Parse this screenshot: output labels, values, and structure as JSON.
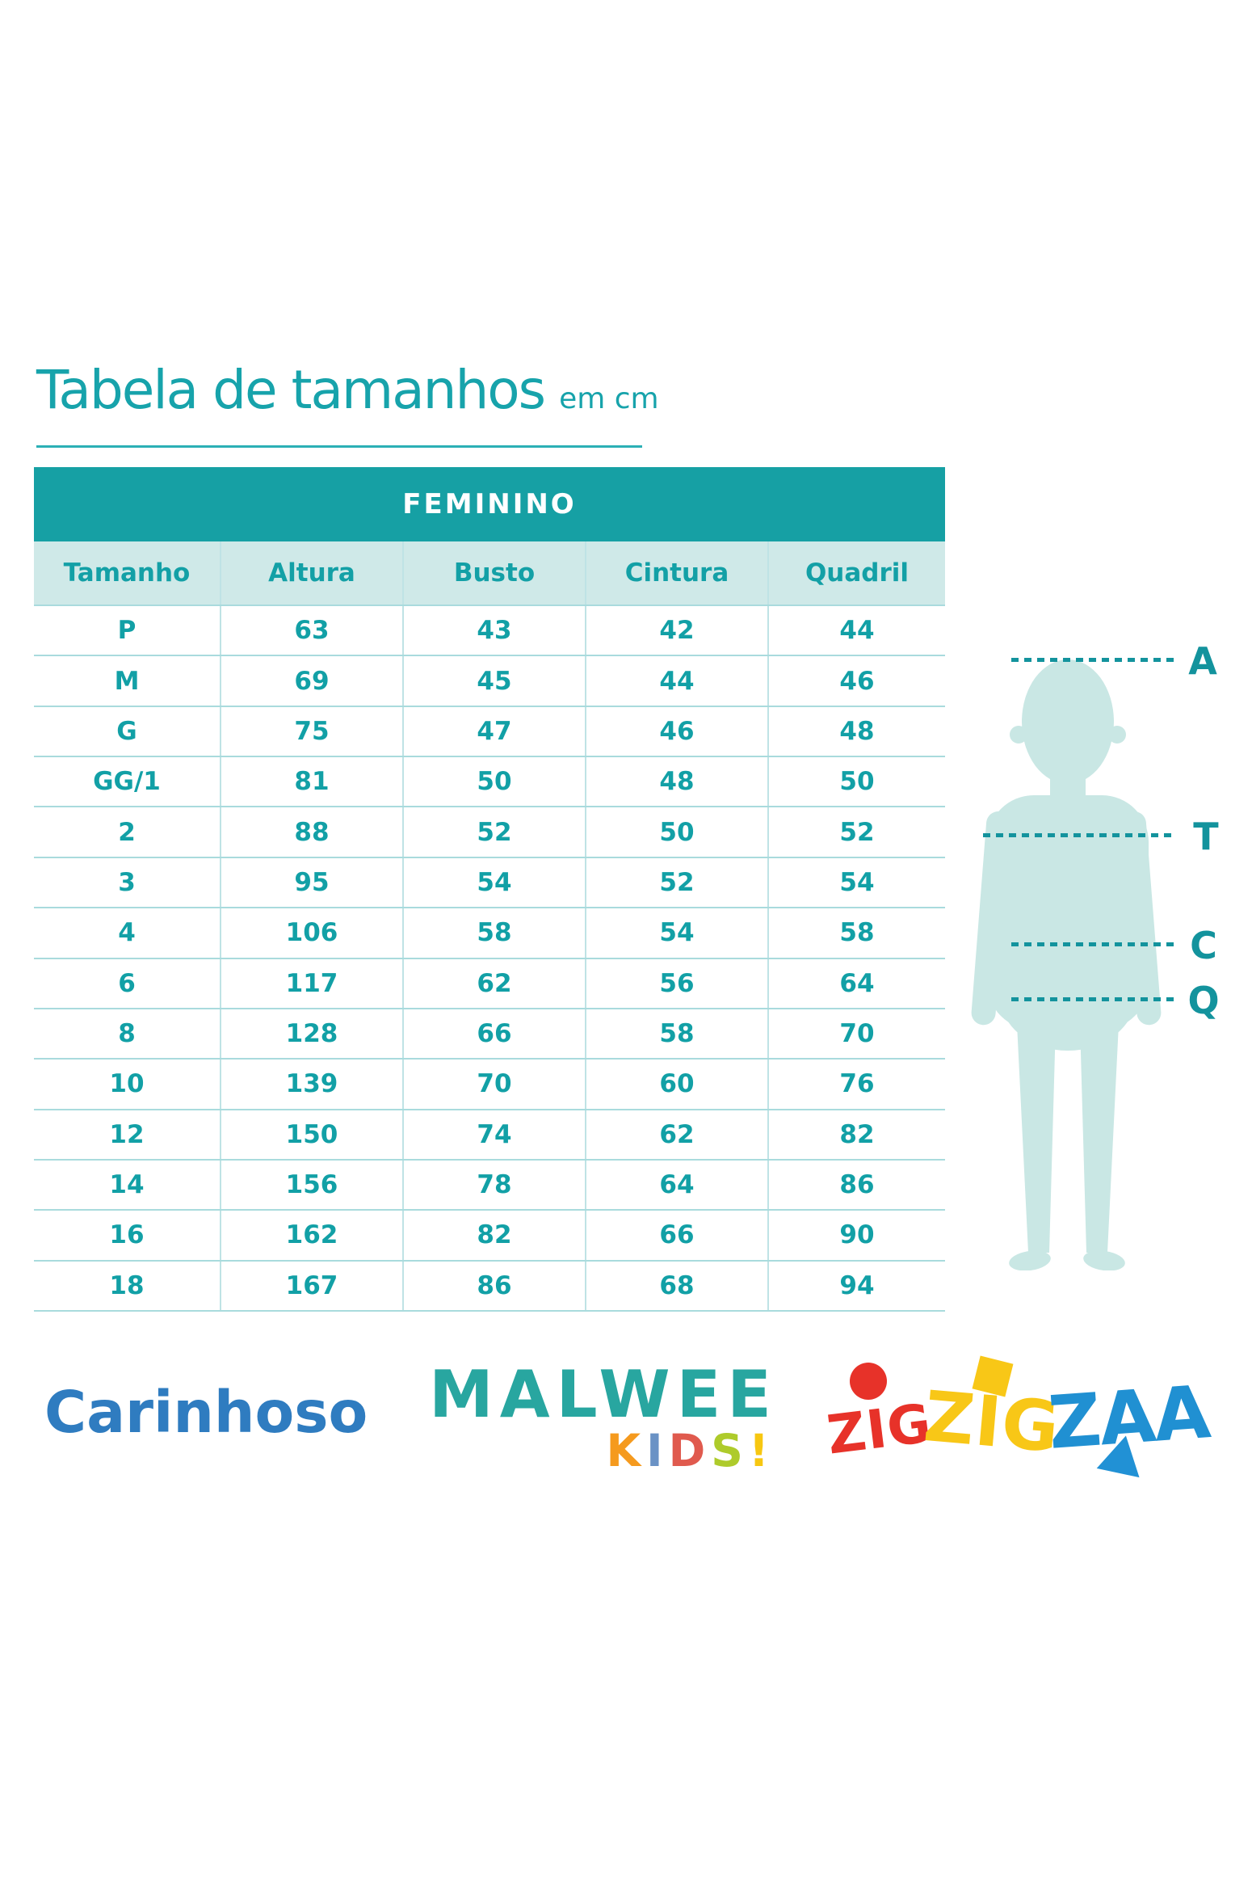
{
  "chart_data": {
    "type": "table",
    "title": "Tabela de tamanhos",
    "unit_label": "em cm",
    "group_header": "FEMININO",
    "columns": [
      "Tamanho",
      "Altura",
      "Busto",
      "Cintura",
      "Quadril"
    ],
    "rows": [
      [
        "P",
        "63",
        "43",
        "42",
        "44"
      ],
      [
        "M",
        "69",
        "45",
        "44",
        "46"
      ],
      [
        "G",
        "75",
        "47",
        "46",
        "48"
      ],
      [
        "GG/1",
        "81",
        "50",
        "48",
        "50"
      ],
      [
        "2",
        "88",
        "52",
        "50",
        "52"
      ],
      [
        "3",
        "95",
        "54",
        "52",
        "54"
      ],
      [
        "4",
        "106",
        "58",
        "54",
        "58"
      ],
      [
        "6",
        "117",
        "62",
        "56",
        "64"
      ],
      [
        "8",
        "128",
        "66",
        "58",
        "70"
      ],
      [
        "10",
        "139",
        "70",
        "60",
        "76"
      ],
      [
        "12",
        "150",
        "74",
        "62",
        "82"
      ],
      [
        "14",
        "156",
        "78",
        "64",
        "86"
      ],
      [
        "16",
        "162",
        "82",
        "66",
        "90"
      ],
      [
        "18",
        "167",
        "86",
        "68",
        "94"
      ]
    ]
  },
  "figure": {
    "labels": [
      "A",
      "T",
      "C",
      "Q"
    ],
    "silhouette_fill": "#c9e7e4",
    "line_color": "#13939d"
  },
  "colors": {
    "title_teal": "#17a3ab",
    "band_teal": "#16a0a4",
    "header_row_bg": "#cfe9e8",
    "table_text_teal": "#12a0a6",
    "row_line": "#a9dbdd"
  },
  "brands": {
    "carinhoso": {
      "text": "Carinhoso",
      "color": "#2f7cc0"
    },
    "malwee": {
      "text": "MALWEE",
      "color": "#28a6a0",
      "kids_letters": [
        {
          "char": "K",
          "color": "#f59a1e"
        },
        {
          "char": "I",
          "color": "#6a92c5"
        },
        {
          "char": "D",
          "color": "#e05a4e"
        },
        {
          "char": "S",
          "color": "#aecb2b"
        },
        {
          "char": "!",
          "color": "#f7c711"
        }
      ]
    },
    "zigzigzaa": {
      "words": [
        {
          "text": "ZIG",
          "color": "#e73229"
        },
        {
          "text": "ZIG",
          "color": "#f8c717"
        },
        {
          "text": "ZAA",
          "color": "#2090d2"
        }
      ],
      "dot_circle_color": "#e73229",
      "dot_square_color": "#f8c717",
      "triangle_color": "#2191d5"
    }
  }
}
